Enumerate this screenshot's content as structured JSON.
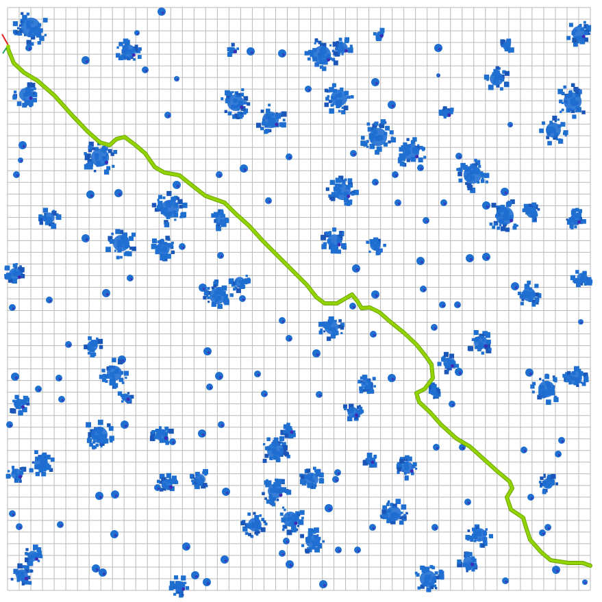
{
  "map": {
    "type": "occupancy-grid-path-plan",
    "grid_rows": 50,
    "grid_cols": 50,
    "colors": {
      "background": "#ffffff",
      "grid_line": "#b8b8b8",
      "obstacle_fill": "#1f6fd1",
      "obstacle_dark": "#1a56b8",
      "obstacle_accent": "#3d2ab5",
      "path_stroke": "#93d400",
      "path_outline": "#6aa300",
      "start_arrow_red": "#e02020",
      "start_arrow_green": "#22a05a"
    },
    "icons": {
      "start_marker": "start-arrow-icon",
      "obstacle": "obstacle-blob"
    },
    "legend": "none",
    "axes": "none"
  }
}
